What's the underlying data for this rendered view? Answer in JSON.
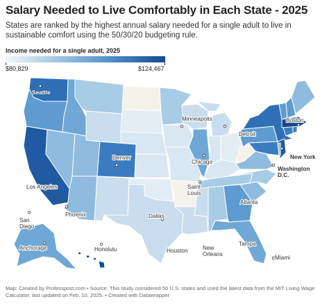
{
  "title": "Salary Needed to Live Comfortably in Each State - 2025",
  "subtitle": "States are ranked by the highest annual salary needed for a single adult to live in sustainable comfort using the 50/30/20 budgeting rule.",
  "legend": {
    "title": "Income needed for a single adult, 2025",
    "min_label": "$80,829",
    "max_label": "$124,467"
  },
  "colors": {
    "lightest": "#f2f6fa",
    "light": "#c9ddee",
    "mid": "#8fbbdf",
    "medium": "#5e9bd0",
    "darker": "#3b7cc0",
    "darkest": "#174a8f",
    "grey_low": "#f4f3e9"
  },
  "cities": {
    "seattle": "Seattle",
    "minneapolis": "Minneapolis",
    "detroit": "Detroit",
    "boston": "Boston",
    "chicago": "Chicago",
    "new_york": "New York",
    "denver": "Denver",
    "washington": "Washington D.C.",
    "saint_louis": "Saint Louis",
    "los_angeles": "Los Angeles",
    "atlanta": "Atlanta",
    "phoenix": "Phoenix",
    "san_diego": "San Diego",
    "dallas": "Dallas",
    "anchorage": "Anchorage",
    "honolulu": "Honolulu",
    "houston": "Houston",
    "new_orleans": "New Orleans",
    "tampa": "Tampa",
    "miami": "Miami"
  },
  "footer": "Map: Created by Professpost.com • Source: This study considered 50 U.S. states and used the latest data from the MIT Living Wage Calculator, last updated on Feb. 10, 2025. • Created with Datawrapper"
}
